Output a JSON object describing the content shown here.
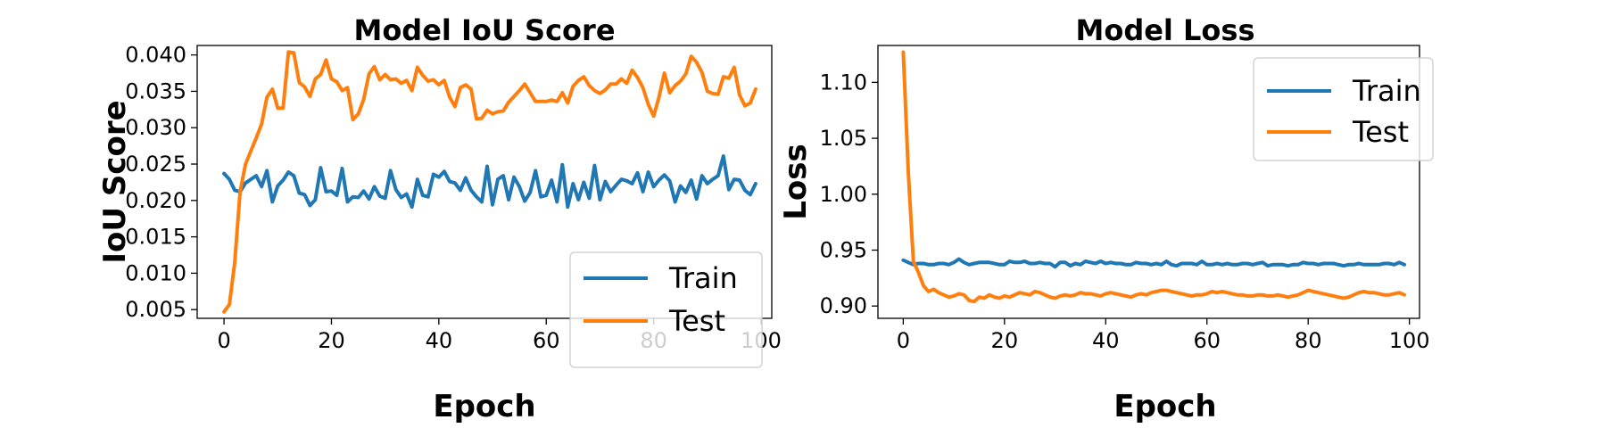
{
  "chart_data": [
    {
      "type": "line",
      "title": "Model IoU Score",
      "xlabel": "Epoch",
      "ylabel": "IoU Score",
      "xlim": [
        -5,
        102
      ],
      "ylim": [
        0.0038,
        0.0413
      ],
      "xticks": [
        0,
        20,
        40,
        60,
        80,
        100
      ],
      "xtick_labels": [
        "0",
        "20",
        "40",
        "60",
        "80",
        "100"
      ],
      "yticks": [
        0.005,
        0.01,
        0.015,
        0.02,
        0.025,
        0.03,
        0.035,
        0.04
      ],
      "ytick_labels": [
        "0.005",
        "0.010",
        "0.015",
        "0.020",
        "0.025",
        "0.030",
        "0.035",
        "0.040"
      ],
      "grid": false,
      "legend_position": "lower-right",
      "series": [
        {
          "name": "Train",
          "color": "#1f77b4",
          "values": [
            0.0237,
            0.0229,
            0.0214,
            0.0212,
            0.0224,
            0.0229,
            0.0234,
            0.0219,
            0.0241,
            0.0198,
            0.022,
            0.0228,
            0.0239,
            0.0234,
            0.021,
            0.0208,
            0.0193,
            0.0201,
            0.0245,
            0.0212,
            0.0213,
            0.0207,
            0.0244,
            0.0198,
            0.0205,
            0.0204,
            0.0213,
            0.0202,
            0.0219,
            0.0206,
            0.0203,
            0.0241,
            0.0215,
            0.0204,
            0.0209,
            0.0191,
            0.0229,
            0.0207,
            0.0205,
            0.0236,
            0.0232,
            0.024,
            0.0226,
            0.0224,
            0.0214,
            0.0231,
            0.0214,
            0.0205,
            0.0198,
            0.0247,
            0.0194,
            0.0229,
            0.0234,
            0.0201,
            0.0232,
            0.0219,
            0.0199,
            0.0211,
            0.0241,
            0.0205,
            0.0207,
            0.0228,
            0.0198,
            0.0249,
            0.0191,
            0.0223,
            0.0201,
            0.0225,
            0.0203,
            0.0248,
            0.0201,
            0.0226,
            0.0212,
            0.0221,
            0.0229,
            0.0227,
            0.0223,
            0.0238,
            0.0212,
            0.0239,
            0.0219,
            0.0228,
            0.0235,
            0.0227,
            0.0198,
            0.022,
            0.0211,
            0.0228,
            0.0202,
            0.0234,
            0.0223,
            0.0229,
            0.0234,
            0.0261,
            0.0215,
            0.0229,
            0.0228,
            0.0214,
            0.0208,
            0.0223
          ]
        },
        {
          "name": "Test",
          "color": "#ff7f0e",
          "values": [
            0.0047,
            0.0057,
            0.0115,
            0.0212,
            0.025,
            0.0268,
            0.0286,
            0.0305,
            0.0342,
            0.0353,
            0.0327,
            0.0327,
            0.0404,
            0.0403,
            0.0362,
            0.0356,
            0.0343,
            0.0367,
            0.0373,
            0.0393,
            0.0367,
            0.0363,
            0.0351,
            0.0355,
            0.0311,
            0.0319,
            0.0339,
            0.0374,
            0.0384,
            0.0366,
            0.0373,
            0.0366,
            0.0367,
            0.0361,
            0.0365,
            0.0351,
            0.0383,
            0.0372,
            0.0364,
            0.0366,
            0.0359,
            0.0365,
            0.0342,
            0.0329,
            0.0355,
            0.0359,
            0.0353,
            0.0312,
            0.0313,
            0.0324,
            0.0319,
            0.0322,
            0.0323,
            0.0335,
            0.0343,
            0.0351,
            0.036,
            0.0348,
            0.0336,
            0.0336,
            0.0336,
            0.0338,
            0.0336,
            0.0348,
            0.0334,
            0.0357,
            0.0365,
            0.037,
            0.0358,
            0.0351,
            0.0347,
            0.0352,
            0.036,
            0.036,
            0.0367,
            0.0361,
            0.0379,
            0.0369,
            0.0355,
            0.0332,
            0.0316,
            0.0342,
            0.0375,
            0.0348,
            0.0358,
            0.0364,
            0.0374,
            0.0398,
            0.039,
            0.0376,
            0.035,
            0.0347,
            0.0346,
            0.037,
            0.0368,
            0.0383,
            0.0345,
            0.033,
            0.0334,
            0.0353
          ]
        }
      ]
    },
    {
      "type": "line",
      "title": "Model Loss",
      "xlabel": "Epoch",
      "ylabel": "Loss",
      "xlim": [
        -5,
        102
      ],
      "ylim": [
        0.889,
        1.133
      ],
      "xticks": [
        0,
        20,
        40,
        60,
        80,
        100
      ],
      "xtick_labels": [
        "0",
        "20",
        "40",
        "60",
        "80",
        "100"
      ],
      "yticks": [
        0.9,
        0.95,
        1.0,
        1.05,
        1.1
      ],
      "ytick_labels": [
        "0.90",
        "0.95",
        "1.00",
        "1.05",
        "1.10"
      ],
      "grid": false,
      "legend_position": "upper-right",
      "series": [
        {
          "name": "Train",
          "color": "#1f77b4",
          "values": [
            0.941,
            0.939,
            0.937,
            0.938,
            0.938,
            0.937,
            0.937,
            0.938,
            0.938,
            0.937,
            0.939,
            0.942,
            0.939,
            0.937,
            0.938,
            0.939,
            0.939,
            0.939,
            0.938,
            0.937,
            0.937,
            0.94,
            0.939,
            0.939,
            0.94,
            0.938,
            0.938,
            0.939,
            0.938,
            0.938,
            0.935,
            0.939,
            0.939,
            0.936,
            0.938,
            0.937,
            0.94,
            0.939,
            0.938,
            0.94,
            0.938,
            0.939,
            0.938,
            0.938,
            0.937,
            0.937,
            0.939,
            0.938,
            0.938,
            0.937,
            0.938,
            0.937,
            0.94,
            0.937,
            0.936,
            0.938,
            0.938,
            0.938,
            0.937,
            0.94,
            0.937,
            0.937,
            0.938,
            0.937,
            0.938,
            0.937,
            0.937,
            0.938,
            0.938,
            0.937,
            0.938,
            0.939,
            0.936,
            0.937,
            0.937,
            0.937,
            0.936,
            0.937,
            0.937,
            0.939,
            0.938,
            0.938,
            0.937,
            0.938,
            0.938,
            0.938,
            0.937,
            0.936,
            0.937,
            0.937,
            0.938,
            0.937,
            0.937,
            0.937,
            0.937,
            0.938,
            0.938,
            0.937,
            0.939,
            0.937
          ]
        },
        {
          "name": "Test",
          "color": "#ff7f0e",
          "values": [
            1.127,
            1.02,
            0.94,
            0.93,
            0.918,
            0.913,
            0.915,
            0.912,
            0.91,
            0.908,
            0.909,
            0.911,
            0.91,
            0.905,
            0.904,
            0.908,
            0.907,
            0.91,
            0.908,
            0.907,
            0.909,
            0.908,
            0.91,
            0.912,
            0.911,
            0.91,
            0.913,
            0.912,
            0.91,
            0.908,
            0.907,
            0.909,
            0.91,
            0.909,
            0.91,
            0.912,
            0.911,
            0.911,
            0.91,
            0.909,
            0.911,
            0.912,
            0.911,
            0.91,
            0.909,
            0.908,
            0.91,
            0.911,
            0.91,
            0.912,
            0.913,
            0.914,
            0.914,
            0.913,
            0.912,
            0.911,
            0.91,
            0.909,
            0.91,
            0.91,
            0.911,
            0.913,
            0.912,
            0.913,
            0.912,
            0.911,
            0.91,
            0.91,
            0.909,
            0.909,
            0.91,
            0.91,
            0.909,
            0.909,
            0.91,
            0.909,
            0.908,
            0.909,
            0.91,
            0.912,
            0.914,
            0.913,
            0.912,
            0.911,
            0.91,
            0.909,
            0.908,
            0.907,
            0.908,
            0.91,
            0.912,
            0.913,
            0.912,
            0.912,
            0.911,
            0.91,
            0.91,
            0.911,
            0.912,
            0.91
          ]
        }
      ]
    }
  ]
}
